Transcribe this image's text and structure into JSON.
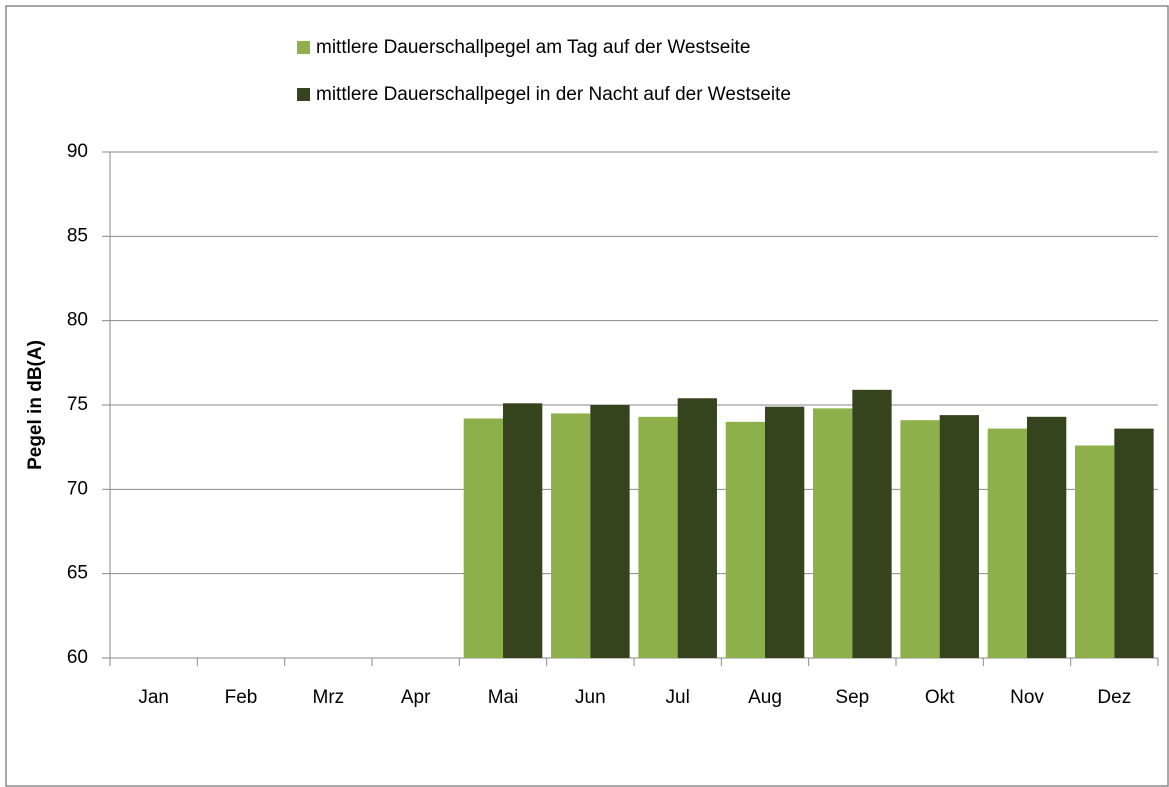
{
  "chart_data": {
    "type": "bar",
    "categories": [
      "Jan",
      "Feb",
      "Mrz",
      "Apr",
      "Mai",
      "Jun",
      "Jul",
      "Aug",
      "Sep",
      "Okt",
      "Nov",
      "Dez"
    ],
    "series": [
      {
        "name": "mittlere Dauerschallpegel am Tag auf der Westseite",
        "color": "#8db04a",
        "values": [
          null,
          null,
          null,
          null,
          74.2,
          74.5,
          74.3,
          74.0,
          74.8,
          74.1,
          73.6,
          72.6
        ]
      },
      {
        "name": "mittlere Dauerschallpegel in der Nacht auf der Westseite",
        "color": "#35441c",
        "values": [
          null,
          null,
          null,
          null,
          75.1,
          75.0,
          75.4,
          74.9,
          75.9,
          74.4,
          74.3,
          73.6
        ]
      }
    ],
    "y_label": "Pegel in dB(A)",
    "ylim": [
      60,
      90
    ],
    "yticks": [
      60,
      65,
      70,
      75,
      80,
      85,
      90
    ],
    "grid": true
  }
}
